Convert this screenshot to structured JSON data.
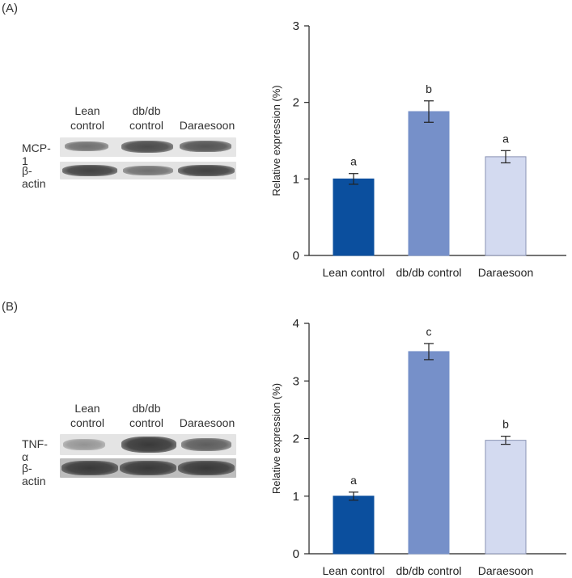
{
  "panels": [
    {
      "label": "(A)",
      "blot": {
        "lanes": [
          {
            "line1": "Lean",
            "line2": "control"
          },
          {
            "line1": "db/db",
            "line2": "control"
          },
          {
            "line1": "Daraesoon",
            "line2": ""
          }
        ],
        "rows": [
          {
            "protein": "MCP-1",
            "intensity": [
              0.55,
              0.75,
              0.7
            ]
          },
          {
            "protein": "β-actin",
            "intensity": [
              0.8,
              0.55,
              0.8
            ]
          }
        ]
      }
    },
    {
      "label": "(B)",
      "blot": {
        "lanes": [
          {
            "line1": "Lean",
            "line2": "control"
          },
          {
            "line1": "db/db",
            "line2": "control"
          },
          {
            "line1": "Daraesoon",
            "line2": ""
          }
        ],
        "rows": [
          {
            "protein": "TNF-α",
            "intensity": [
              0.35,
              0.85,
              0.65
            ]
          },
          {
            "protein": "β-actin",
            "intensity": [
              0.85,
              0.85,
              0.85
            ]
          }
        ]
      }
    }
  ],
  "colors": {
    "bar_dark": "#0b4f9e",
    "bar_mid": "#7690c9",
    "bar_light": "#d3daf0",
    "axis": "#222222"
  },
  "chart_data": [
    {
      "type": "bar",
      "title": "",
      "xlabel": "",
      "ylabel": "Relative expression (%)",
      "categories": [
        "Lean control",
        "db/db control",
        "Daraesoon"
      ],
      "values": [
        1.0,
        1.88,
        1.29
      ],
      "errors": [
        0.07,
        0.14,
        0.08
      ],
      "letters": [
        "a",
        "b",
        "a"
      ],
      "ylim": [
        0,
        3
      ],
      "yticks": [
        "0",
        "1",
        "2",
        "3"
      ]
    },
    {
      "type": "bar",
      "title": "",
      "xlabel": "",
      "ylabel": "Relative expression (%)",
      "categories": [
        "Lean control",
        "db/db control",
        "Daraesoon"
      ],
      "values": [
        1.0,
        3.51,
        1.97
      ],
      "errors": [
        0.07,
        0.14,
        0.07
      ],
      "letters": [
        "a",
        "c",
        "b"
      ],
      "ylim": [
        0,
        4
      ],
      "yticks": [
        "0",
        "1",
        "2",
        "3",
        "4"
      ]
    }
  ]
}
